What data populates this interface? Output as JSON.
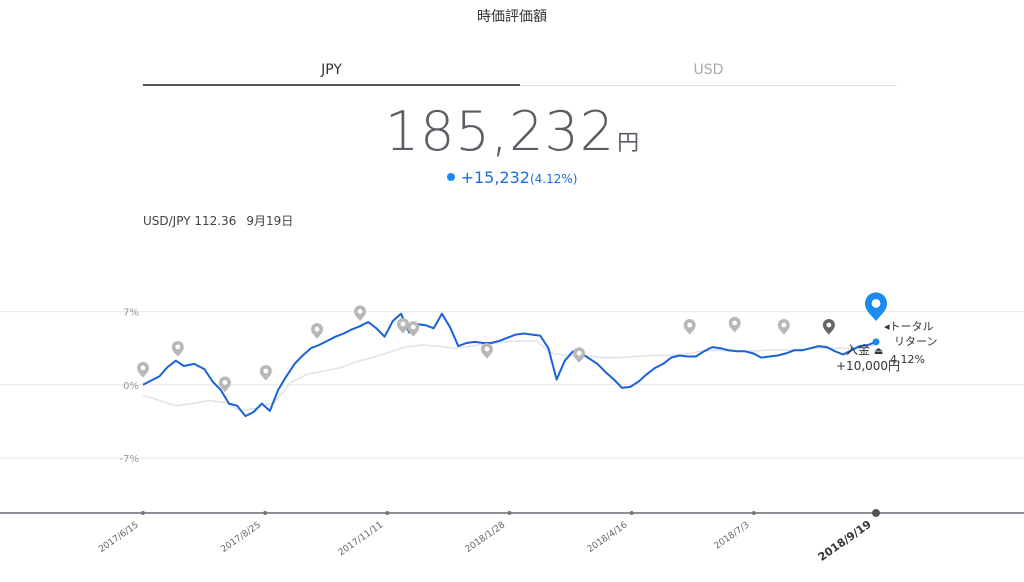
{
  "header": {
    "title": "時価評価額"
  },
  "tabs": [
    {
      "label": "JPY"
    },
    {
      "label": "USD"
    }
  ],
  "valuation": {
    "amount": "185,232",
    "unit": "円"
  },
  "change": {
    "amount": "+15,232",
    "percent": "(4.12%)"
  },
  "fx": {
    "pair": "USD/JPY 112.36",
    "date": "9月19日"
  },
  "annotations": {
    "total_return_label": "◂トータル",
    "total_return_label2": "リターン",
    "total_return_value": "4.12%",
    "deposit_label": "入金",
    "deposit_amount": "+10,000円"
  },
  "colors": {
    "portfolio": "#1a62d6",
    "benchmark": "#dfe3ea",
    "marker": "#b8b8b8",
    "marker_current": "#1a8bf0",
    "marker_deposit": "#666666"
  },
  "chart_data": {
    "type": "line",
    "title": "",
    "xlabel": "",
    "ylabel": "",
    "ylim": [
      -11.5,
      10.5
    ],
    "yticks": [
      7,
      0,
      -7
    ],
    "ytick_labels": [
      "7%",
      "0%",
      "-7%"
    ],
    "xticks": [
      "2017/6/15",
      "2017/8/25",
      "2017/11/11",
      "2018/1/28",
      "2018/4/16",
      "2018/7/3",
      "2018/9/19"
    ],
    "current_xtick": "2018/9/19",
    "grid": true,
    "series": [
      {
        "role": "portfolio",
        "points": [
          [
            0,
            0
          ],
          [
            3,
            0.3
          ],
          [
            8,
            0.8
          ],
          [
            12,
            1.7
          ],
          [
            16,
            2.3
          ],
          [
            20,
            1.8
          ],
          [
            25,
            2.0
          ],
          [
            30,
            1.5
          ],
          [
            34,
            0.3
          ],
          [
            38,
            -0.5
          ],
          [
            42,
            -1.8
          ],
          [
            46,
            -2.0
          ],
          [
            50,
            -3.0
          ],
          [
            54,
            -2.6
          ],
          [
            58,
            -1.8
          ],
          [
            62,
            -2.5
          ],
          [
            66,
            -0.5
          ],
          [
            70,
            0.8
          ],
          [
            74,
            2.0
          ],
          [
            78,
            2.8
          ],
          [
            82,
            3.5
          ],
          [
            86,
            3.8
          ],
          [
            90,
            4.2
          ],
          [
            94,
            4.6
          ],
          [
            98,
            4.9
          ],
          [
            102,
            5.3
          ],
          [
            106,
            5.6
          ],
          [
            110,
            6.0
          ],
          [
            114,
            5.4
          ],
          [
            118,
            4.6
          ],
          [
            122,
            6.1
          ],
          [
            126,
            6.8
          ],
          [
            130,
            5.0
          ],
          [
            134,
            5.8
          ],
          [
            138,
            5.7
          ],
          [
            142,
            5.4
          ],
          [
            146,
            6.8
          ],
          [
            150,
            5.5
          ],
          [
            154,
            3.7
          ],
          [
            158,
            4.0
          ],
          [
            162,
            4.1
          ],
          [
            166,
            4.0
          ],
          [
            170,
            4.0
          ],
          [
            174,
            4.2
          ],
          [
            178,
            4.5
          ],
          [
            182,
            4.8
          ],
          [
            186,
            4.9
          ],
          [
            190,
            4.8
          ],
          [
            194,
            4.7
          ],
          [
            198,
            3.5
          ],
          [
            202,
            0.5
          ],
          [
            206,
            2.3
          ],
          [
            210,
            3.2
          ],
          [
            214,
            3.0
          ],
          [
            218,
            2.5
          ],
          [
            222,
            2.0
          ],
          [
            226,
            1.2
          ],
          [
            230,
            0.5
          ],
          [
            234,
            -0.3
          ],
          [
            238,
            -0.2
          ],
          [
            242,
            0.3
          ],
          [
            246,
            1.0
          ],
          [
            250,
            1.6
          ],
          [
            254,
            2.0
          ],
          [
            258,
            2.6
          ],
          [
            262,
            2.8
          ],
          [
            266,
            2.7
          ],
          [
            270,
            2.7
          ],
          [
            274,
            3.2
          ],
          [
            278,
            3.6
          ],
          [
            282,
            3.5
          ],
          [
            286,
            3.3
          ],
          [
            290,
            3.2
          ],
          [
            294,
            3.2
          ],
          [
            298,
            3.0
          ],
          [
            302,
            2.6
          ],
          [
            306,
            2.7
          ],
          [
            310,
            2.8
          ],
          [
            314,
            3.0
          ],
          [
            318,
            3.3
          ],
          [
            322,
            3.3
          ],
          [
            326,
            3.5
          ],
          [
            330,
            3.7
          ],
          [
            334,
            3.6
          ],
          [
            338,
            3.2
          ],
          [
            342,
            2.9
          ],
          [
            346,
            3.3
          ],
          [
            350,
            3.7
          ],
          [
            354,
            3.8
          ],
          [
            358,
            4.1
          ]
        ]
      },
      {
        "role": "benchmark",
        "points": [
          [
            0,
            -1.0
          ],
          [
            8,
            -1.5
          ],
          [
            16,
            -2.0
          ],
          [
            24,
            -1.8
          ],
          [
            32,
            -1.5
          ],
          [
            40,
            -1.7
          ],
          [
            48,
            -2.5
          ],
          [
            56,
            -2.2
          ],
          [
            64,
            -1.7
          ],
          [
            72,
            0.2
          ],
          [
            80,
            1.0
          ],
          [
            88,
            1.3
          ],
          [
            96,
            1.6
          ],
          [
            104,
            2.2
          ],
          [
            112,
            2.6
          ],
          [
            120,
            3.1
          ],
          [
            128,
            3.6
          ],
          [
            136,
            3.8
          ],
          [
            144,
            3.7
          ],
          [
            152,
            3.5
          ],
          [
            160,
            3.7
          ],
          [
            168,
            3.9
          ],
          [
            176,
            4.1
          ],
          [
            184,
            4.2
          ],
          [
            192,
            4.2
          ],
          [
            200,
            3.0
          ],
          [
            208,
            2.8
          ],
          [
            216,
            2.8
          ],
          [
            224,
            2.6
          ],
          [
            232,
            2.6
          ],
          [
            240,
            2.7
          ],
          [
            248,
            2.8
          ],
          [
            256,
            2.8
          ],
          [
            264,
            2.9
          ],
          [
            272,
            3.2
          ],
          [
            280,
            3.3
          ],
          [
            288,
            3.2
          ],
          [
            296,
            3.2
          ],
          [
            304,
            3.3
          ],
          [
            312,
            3.3
          ],
          [
            320,
            3.4
          ],
          [
            328,
            3.5
          ],
          [
            336,
            3.5
          ],
          [
            344,
            3.5
          ],
          [
            352,
            3.6
          ],
          [
            358,
            3.8
          ]
        ]
      }
    ],
    "events": [
      {
        "x": 0,
        "y": 0.7,
        "type": "marker"
      },
      {
        "x": 17,
        "y": 2.7,
        "type": "marker"
      },
      {
        "x": 40,
        "y": -0.7,
        "type": "marker"
      },
      {
        "x": 60,
        "y": 0.4,
        "type": "marker"
      },
      {
        "x": 85,
        "y": 4.4,
        "type": "marker"
      },
      {
        "x": 106,
        "y": 6.1,
        "type": "marker"
      },
      {
        "x": 127,
        "y": 4.9,
        "type": "marker"
      },
      {
        "x": 132,
        "y": 4.6,
        "type": "marker"
      },
      {
        "x": 168,
        "y": 2.5,
        "type": "marker"
      },
      {
        "x": 213,
        "y": 2.1,
        "type": "marker"
      },
      {
        "x": 267,
        "y": 4.8,
        "type": "marker"
      },
      {
        "x": 289,
        "y": 5.0,
        "type": "marker"
      },
      {
        "x": 313,
        "y": 4.8,
        "type": "marker"
      },
      {
        "x": 335,
        "y": 4.8,
        "type": "deposit"
      },
      {
        "x": 358,
        "y": 6.1,
        "type": "current"
      }
    ]
  }
}
